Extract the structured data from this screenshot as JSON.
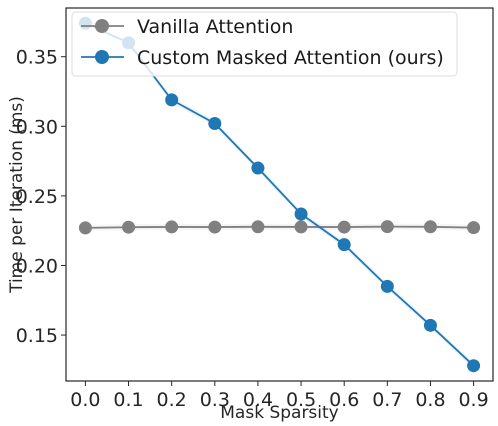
{
  "chart_data": {
    "type": "line",
    "title": "",
    "xlabel": "Mask Sparsity",
    "ylabel": "Time per Iteration (ms)",
    "x": [
      0.0,
      0.1,
      0.2,
      0.3,
      0.4,
      0.5,
      0.6,
      0.7,
      0.8,
      0.9
    ],
    "x_tick_labels": [
      "0.0",
      "0.1",
      "0.2",
      "0.3",
      "0.4",
      "0.5",
      "0.6",
      "0.7",
      "0.8",
      "0.9"
    ],
    "y_ticks": [
      0.15,
      0.2,
      0.25,
      0.3,
      0.35
    ],
    "y_tick_labels": [
      "0.15",
      "0.20",
      "0.25",
      "0.30",
      "0.35"
    ],
    "xlim": [
      -0.045,
      0.945
    ],
    "ylim": [
      0.117,
      0.385
    ],
    "grid": false,
    "legend_position": "top-left",
    "series": [
      {
        "name": "Vanilla Attention",
        "color": "#808080",
        "marker": "circle",
        "values": [
          0.227,
          0.2275,
          0.2277,
          0.2276,
          0.2278,
          0.2277,
          0.2276,
          0.2279,
          0.2278,
          0.2272
        ]
      },
      {
        "name": "Custom Masked Attention (ours)",
        "color": "#1f77b4",
        "marker": "circle",
        "values": [
          0.374,
          0.36,
          0.319,
          0.302,
          0.27,
          0.237,
          0.215,
          0.185,
          0.157,
          0.128
        ]
      }
    ]
  }
}
